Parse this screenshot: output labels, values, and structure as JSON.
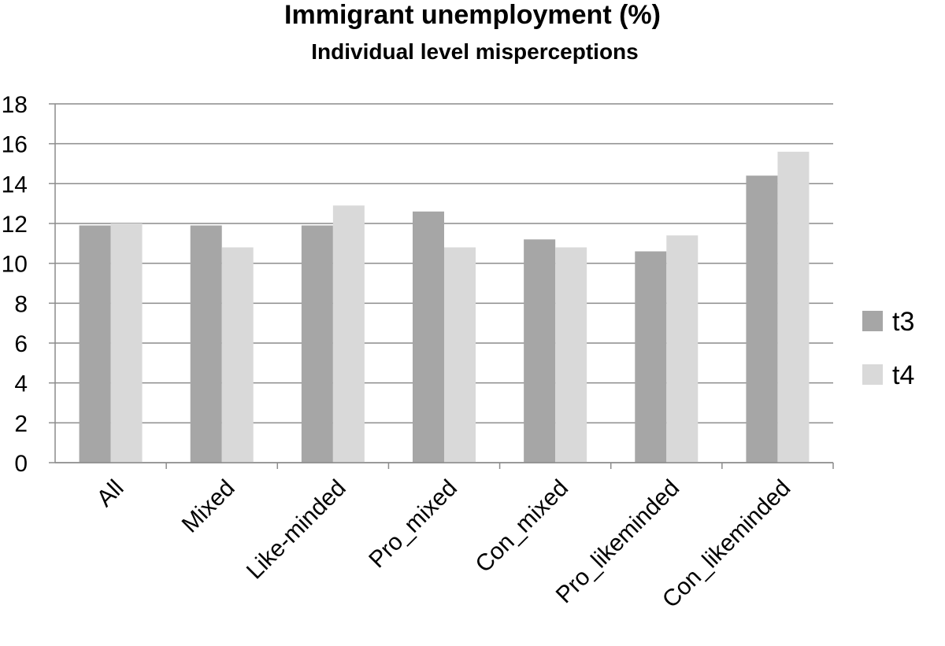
{
  "chart_data": {
    "type": "bar",
    "title": "Immigrant unemployment (%)",
    "subtitle": "Individual level misperceptions",
    "xlabel": "",
    "ylabel": "",
    "ylim": [
      0,
      18
    ],
    "yticks": [
      0,
      2,
      4,
      6,
      8,
      10,
      12,
      14,
      16,
      18
    ],
    "grid": true,
    "legend_position": "right",
    "categories": [
      "All",
      "Mixed",
      "Like-minded",
      "Pro_mixed",
      "Con_mixed",
      "Pro_likeminded",
      "Con_likeminded"
    ],
    "series": [
      {
        "name": "t3",
        "color": "#a6a6a6",
        "values": [
          11.9,
          11.9,
          11.9,
          12.6,
          11.2,
          10.6,
          14.4
        ]
      },
      {
        "name": "t4",
        "color": "#d9d9d9",
        "values": [
          12.0,
          10.8,
          12.9,
          10.8,
          10.8,
          11.4,
          15.6
        ]
      }
    ]
  }
}
